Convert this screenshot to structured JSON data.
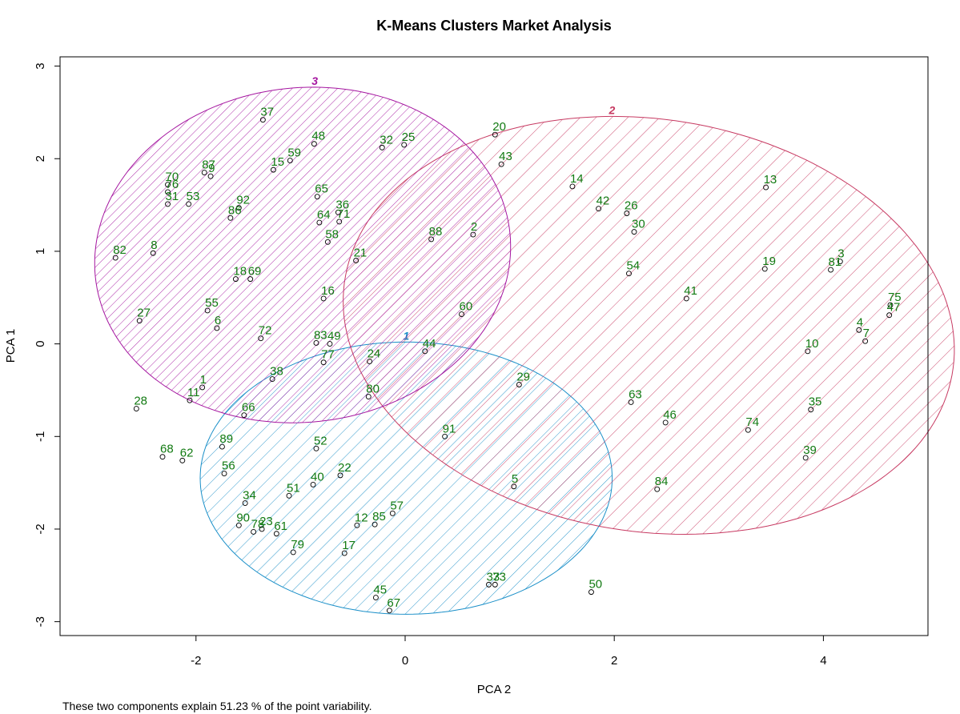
{
  "chart_data": {
    "type": "scatter",
    "title": "K-Means Clusters Market Analysis",
    "xlabel": "PCA 2",
    "ylabel": "PCA 1",
    "caption": "These two components explain 51.23 % of the point variability.",
    "xlim": [
      -3.3,
      5.0
    ],
    "ylim": [
      -3.15,
      3.1
    ],
    "xticks": [
      -2,
      0,
      2,
      4
    ],
    "xtick_labels": [
      "-2",
      "0",
      "2",
      "4"
    ],
    "yticks": [
      -3,
      -2,
      -1,
      0,
      1,
      2,
      3
    ],
    "ytick_labels": [
      "-3",
      "-2",
      "-1",
      "0",
      "1",
      "2",
      "3"
    ],
    "grid": false,
    "colors": {
      "points": "#000000",
      "labels": "#127a12",
      "cluster_1": "#1a8fc8",
      "cluster_2": "#c73a62",
      "cluster_3": "#a516a0"
    },
    "clusters": [
      {
        "label": "1",
        "cx": 0.01,
        "cy": -1.45,
        "rx": 1.97,
        "ry": 1.47,
        "color": "#1a8fc8"
      },
      {
        "label": "2",
        "cx": 2.33,
        "cy": 0.2,
        "rx": 2.22,
        "ry": 2.95,
        "angle": 78,
        "color": "#c73a62"
      },
      {
        "label": "3",
        "cx": -0.98,
        "cy": 0.96,
        "rx": 2.0,
        "ry": 1.8,
        "angle": 14,
        "color": "#a516a0"
      }
    ],
    "points": [
      {
        "label": "37",
        "x": -1.36,
        "y": 2.42
      },
      {
        "label": "48",
        "x": -0.87,
        "y": 2.16
      },
      {
        "label": "32",
        "x": -0.22,
        "y": 2.12
      },
      {
        "label": "25",
        "x": -0.01,
        "y": 2.15
      },
      {
        "label": "20",
        "x": 0.86,
        "y": 2.26
      },
      {
        "label": "43",
        "x": 0.92,
        "y": 1.94
      },
      {
        "label": "59",
        "x": -1.1,
        "y": 1.98
      },
      {
        "label": "15",
        "x": -1.26,
        "y": 1.88
      },
      {
        "label": "87",
        "x": -1.92,
        "y": 1.85
      },
      {
        "label": "9",
        "x": -1.86,
        "y": 1.81
      },
      {
        "label": "70",
        "x": -2.27,
        "y": 1.72
      },
      {
        "label": "76",
        "x": -2.27,
        "y": 1.64
      },
      {
        "label": "31",
        "x": -2.27,
        "y": 1.51
      },
      {
        "label": "53",
        "x": -2.07,
        "y": 1.51
      },
      {
        "label": "92",
        "x": -1.59,
        "y": 1.47
      },
      {
        "label": "86",
        "x": -1.67,
        "y": 1.36
      },
      {
        "label": "65",
        "x": -0.84,
        "y": 1.59
      },
      {
        "label": "36",
        "x": -0.64,
        "y": 1.42
      },
      {
        "label": "64",
        "x": -0.82,
        "y": 1.31
      },
      {
        "label": "71",
        "x": -0.63,
        "y": 1.32
      },
      {
        "label": "58",
        "x": -0.74,
        "y": 1.1
      },
      {
        "label": "88",
        "x": 0.25,
        "y": 1.13
      },
      {
        "label": "2",
        "x": 0.65,
        "y": 1.18
      },
      {
        "label": "82",
        "x": -2.77,
        "y": 0.93
      },
      {
        "label": "8",
        "x": -2.41,
        "y": 0.98
      },
      {
        "label": "21",
        "x": -0.47,
        "y": 0.9
      },
      {
        "label": "18",
        "x": -1.62,
        "y": 0.7
      },
      {
        "label": "69",
        "x": -1.48,
        "y": 0.7
      },
      {
        "label": "16",
        "x": -0.78,
        "y": 0.49
      },
      {
        "label": "55",
        "x": -1.89,
        "y": 0.36
      },
      {
        "label": "27",
        "x": -2.54,
        "y": 0.25
      },
      {
        "label": "6",
        "x": -1.8,
        "y": 0.17
      },
      {
        "label": "60",
        "x": 0.54,
        "y": 0.32
      },
      {
        "label": "72",
        "x": -1.38,
        "y": 0.06
      },
      {
        "label": "83",
        "x": -0.85,
        "y": 0.01
      },
      {
        "label": "49",
        "x": -0.72,
        "y": 0.0
      },
      {
        "label": "44",
        "x": 0.19,
        "y": -0.08
      },
      {
        "label": "24",
        "x": -0.34,
        "y": -0.19
      },
      {
        "label": "77",
        "x": -0.78,
        "y": -0.2
      },
      {
        "label": "38",
        "x": -1.27,
        "y": -0.38
      },
      {
        "label": "1",
        "x": -1.94,
        "y": -0.47
      },
      {
        "label": "11",
        "x": -2.06,
        "y": -0.61
      },
      {
        "label": "80",
        "x": -0.35,
        "y": -0.57
      },
      {
        "label": "28",
        "x": -2.57,
        "y": -0.7
      },
      {
        "label": "66",
        "x": -1.54,
        "y": -0.77
      },
      {
        "label": "29",
        "x": 1.09,
        "y": -0.44
      },
      {
        "label": "91",
        "x": 0.38,
        "y": -1.0
      },
      {
        "label": "89",
        "x": -1.75,
        "y": -1.11
      },
      {
        "label": "52",
        "x": -0.85,
        "y": -1.13
      },
      {
        "label": "68",
        "x": -2.32,
        "y": -1.22
      },
      {
        "label": "62",
        "x": -2.13,
        "y": -1.26
      },
      {
        "label": "56",
        "x": -1.73,
        "y": -1.4
      },
      {
        "label": "22",
        "x": -0.62,
        "y": -1.42
      },
      {
        "label": "40",
        "x": -0.88,
        "y": -1.52
      },
      {
        "label": "51",
        "x": -1.11,
        "y": -1.64
      },
      {
        "label": "5",
        "x": 1.04,
        "y": -1.54
      },
      {
        "label": "34",
        "x": -1.53,
        "y": -1.72
      },
      {
        "label": "57",
        "x": -0.12,
        "y": -1.83
      },
      {
        "label": "85",
        "x": -0.29,
        "y": -1.95
      },
      {
        "label": "12",
        "x": -0.46,
        "y": -1.96
      },
      {
        "label": "90",
        "x": -1.59,
        "y": -1.96
      },
      {
        "label": "78",
        "x": -1.45,
        "y": -2.03
      },
      {
        "label": "23",
        "x": -1.37,
        "y": -2.0
      },
      {
        "label": "61",
        "x": -1.23,
        "y": -2.05
      },
      {
        "label": "79",
        "x": -1.07,
        "y": -2.25
      },
      {
        "label": "17",
        "x": -0.58,
        "y": -2.26
      },
      {
        "label": "33",
        "x": 0.8,
        "y": -2.6
      },
      {
        "label": "73",
        "x": 0.86,
        "y": -2.6
      },
      {
        "label": "45",
        "x": -0.28,
        "y": -2.74
      },
      {
        "label": "67",
        "x": -0.15,
        "y": -2.88
      },
      {
        "label": "50",
        "x": 1.78,
        "y": -2.68
      },
      {
        "label": "14",
        "x": 1.6,
        "y": 1.7
      },
      {
        "label": "42",
        "x": 1.85,
        "y": 1.46
      },
      {
        "label": "26",
        "x": 2.12,
        "y": 1.41
      },
      {
        "label": "30",
        "x": 2.19,
        "y": 1.21
      },
      {
        "label": "13",
        "x": 3.45,
        "y": 1.69
      },
      {
        "label": "54",
        "x": 2.14,
        "y": 0.76
      },
      {
        "label": "19",
        "x": 3.44,
        "y": 0.81
      },
      {
        "label": "3",
        "x": 4.16,
        "y": 0.89
      },
      {
        "label": "81",
        "x": 4.07,
        "y": 0.8
      },
      {
        "label": "41",
        "x": 2.69,
        "y": 0.49
      },
      {
        "label": "75",
        "x": 4.64,
        "y": 0.42
      },
      {
        "label": "47",
        "x": 4.63,
        "y": 0.31
      },
      {
        "label": "4",
        "x": 4.34,
        "y": 0.15
      },
      {
        "label": "7",
        "x": 4.4,
        "y": 0.03
      },
      {
        "label": "10",
        "x": 3.85,
        "y": -0.08
      },
      {
        "label": "63",
        "x": 2.16,
        "y": -0.63
      },
      {
        "label": "46",
        "x": 2.49,
        "y": -0.85
      },
      {
        "label": "35",
        "x": 3.88,
        "y": -0.71
      },
      {
        "label": "74",
        "x": 3.28,
        "y": -0.93
      },
      {
        "label": "39",
        "x": 3.83,
        "y": -1.23
      },
      {
        "label": "84",
        "x": 2.41,
        "y": -1.57
      }
    ]
  }
}
